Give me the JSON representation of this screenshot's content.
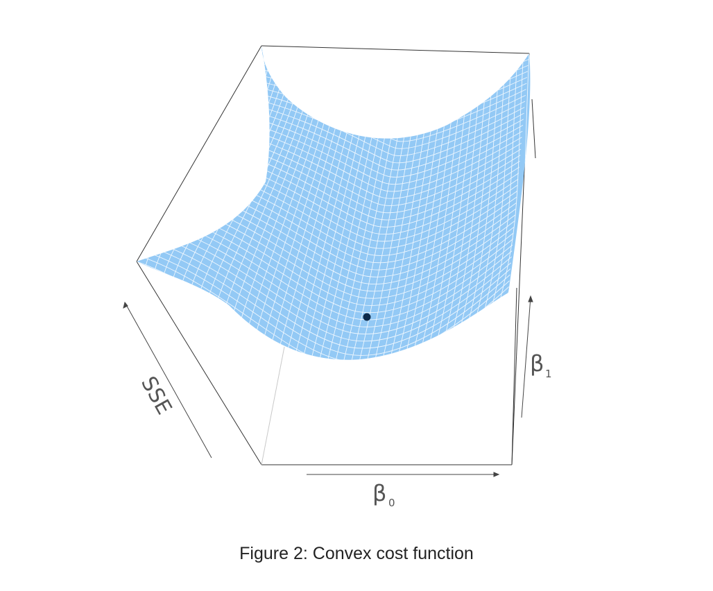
{
  "figure": {
    "caption": "Figure 2: Convex cost function",
    "axes": {
      "z_label": "SSE",
      "x_label_main": "β",
      "x_label_sub": "0",
      "y_label_main": "β",
      "y_label_sub": "1"
    },
    "colors": {
      "surface": "#93c9f5",
      "mesh": "#ffffff",
      "box": "#333333",
      "minimum_point": "#0d2a4a"
    },
    "marker": "minimum-point"
  }
}
